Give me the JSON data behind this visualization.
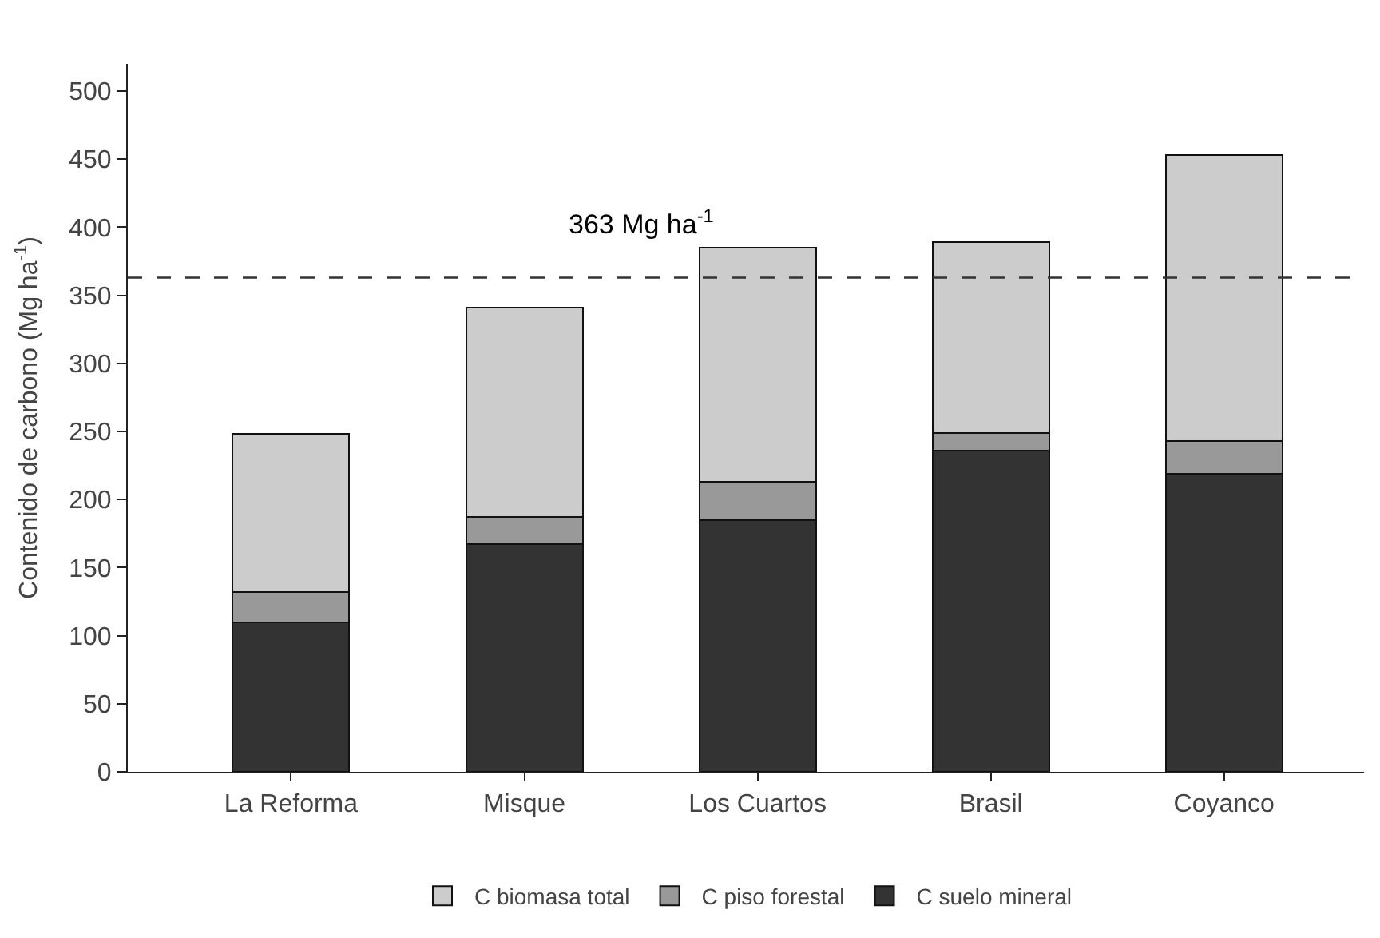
{
  "chart_data": {
    "type": "bar",
    "stacked": true,
    "ylabel": "Contenido de carbono (Mg ha$^{-1}$)",
    "categories": [
      "La Reforma",
      "Misque",
      "Los Cuartos",
      "Brasil",
      "Coyanco"
    ],
    "series": [
      {
        "name": "C suelo mineral",
        "color": "#333333",
        "values": [
          110,
          167,
          185,
          236,
          219
        ]
      },
      {
        "name": "C piso forestal",
        "color": "#999999",
        "values": [
          22,
          20,
          28,
          13,
          24
        ]
      },
      {
        "name": "C biomasa total",
        "color": "#cccccc",
        "values": [
          116,
          154,
          172,
          140,
          210
        ]
      }
    ],
    "ylim": [
      0,
      520
    ],
    "yticks": [
      0,
      50,
      100,
      150,
      200,
      250,
      300,
      350,
      400,
      450,
      500
    ],
    "ref_lines": [
      {
        "axis": "y",
        "value": 363,
        "label": "363 Mg ha$^{-1}$",
        "line_style": "dashed",
        "color": "#333333"
      }
    ],
    "legend": "bottom"
  }
}
